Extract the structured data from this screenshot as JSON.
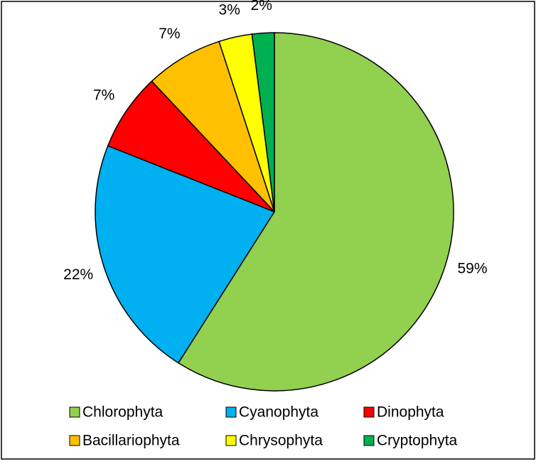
{
  "chart_data": {
    "type": "pie",
    "categories": [
      "Chlorophyta",
      "Cyanophyta",
      "Dinophyta",
      "Bacillariophyta",
      "Chrysophyta",
      "Cryptophyta"
    ],
    "values": [
      59,
      22,
      7,
      7,
      3,
      2
    ],
    "value_labels": [
      "59%",
      "22%",
      "7%",
      "7%",
      "3%",
      "2%"
    ],
    "colors": [
      "#92d050",
      "#00b0f0",
      "#ff0000",
      "#ffc000",
      "#ffff00",
      "#00b050"
    ],
    "legend": "bottom"
  }
}
